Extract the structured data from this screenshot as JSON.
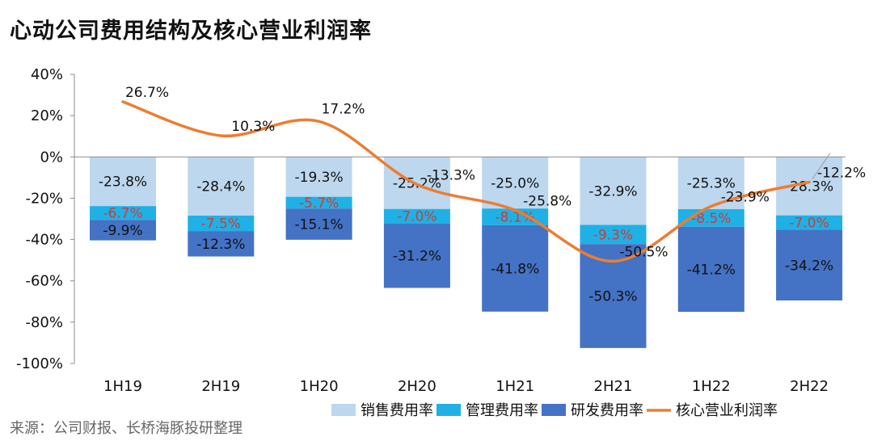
{
  "title": "心动公司费用结构及核心营业利润率",
  "source": "来源：公司财报、长桥海豚投研整理",
  "chart_data": {
    "type": "bar",
    "stacked": true,
    "categories": [
      "1H19",
      "2H19",
      "1H20",
      "2H20",
      "1H21",
      "2H21",
      "1H22",
      "2H22"
    ],
    "ylim": [
      -100,
      40
    ],
    "yticks": [
      40,
      20,
      0,
      -20,
      -40,
      -60,
      -80,
      -100
    ],
    "ytick_labels": [
      "40%",
      "20%",
      "0%",
      "-20%",
      "-40%",
      "-60%",
      "-80%",
      "-100%"
    ],
    "series": [
      {
        "name": "销售费用率",
        "type": "bar",
        "color": "#bdd7ee",
        "label_color": "#111111",
        "values": [
          -23.8,
          -28.4,
          -19.3,
          -25.2,
          -25.0,
          -32.9,
          -25.3,
          -28.3
        ],
        "labels": [
          "-23.8%",
          "-28.4%",
          "-19.3%",
          "-25.2%",
          "-25.0%",
          "-32.9%",
          "-25.3%",
          "-28.3%"
        ]
      },
      {
        "name": "管理费用率",
        "type": "bar",
        "color": "#1fb1e6",
        "label_color": "#d23a35",
        "values": [
          -6.7,
          -7.5,
          -5.7,
          -7.0,
          -8.1,
          -9.3,
          -8.5,
          -7.0
        ],
        "labels": [
          "-6.7%",
          "-7.5%",
          "-5.7%",
          "-7.0%",
          "-8.1%",
          "-9.3%",
          "-8.5%",
          "-7.0%"
        ]
      },
      {
        "name": "研发费用率",
        "type": "bar",
        "color": "#4472c4",
        "label_color": "#111111",
        "values": [
          -9.9,
          -12.3,
          -15.1,
          -31.2,
          -41.8,
          -50.3,
          -41.2,
          -34.2
        ],
        "labels": [
          "-9.9%",
          "-12.3%",
          "-15.1%",
          "-31.2%",
          "-41.8%",
          "-50.3%",
          "-41.2%",
          "-34.2%"
        ]
      },
      {
        "name": "核心营业利润率",
        "type": "line",
        "color": "#ed7d31",
        "values": [
          26.7,
          10.3,
          17.2,
          -13.3,
          -25.8,
          -50.5,
          -23.9,
          -12.2
        ],
        "labels": [
          "26.7%",
          "10.3%",
          "17.2%",
          "-13.3%",
          "-25.8%",
          "-50.5%",
          "-23.9%",
          "-12.2%"
        ]
      }
    ],
    "legend": "bottom-right",
    "grid": false
  }
}
